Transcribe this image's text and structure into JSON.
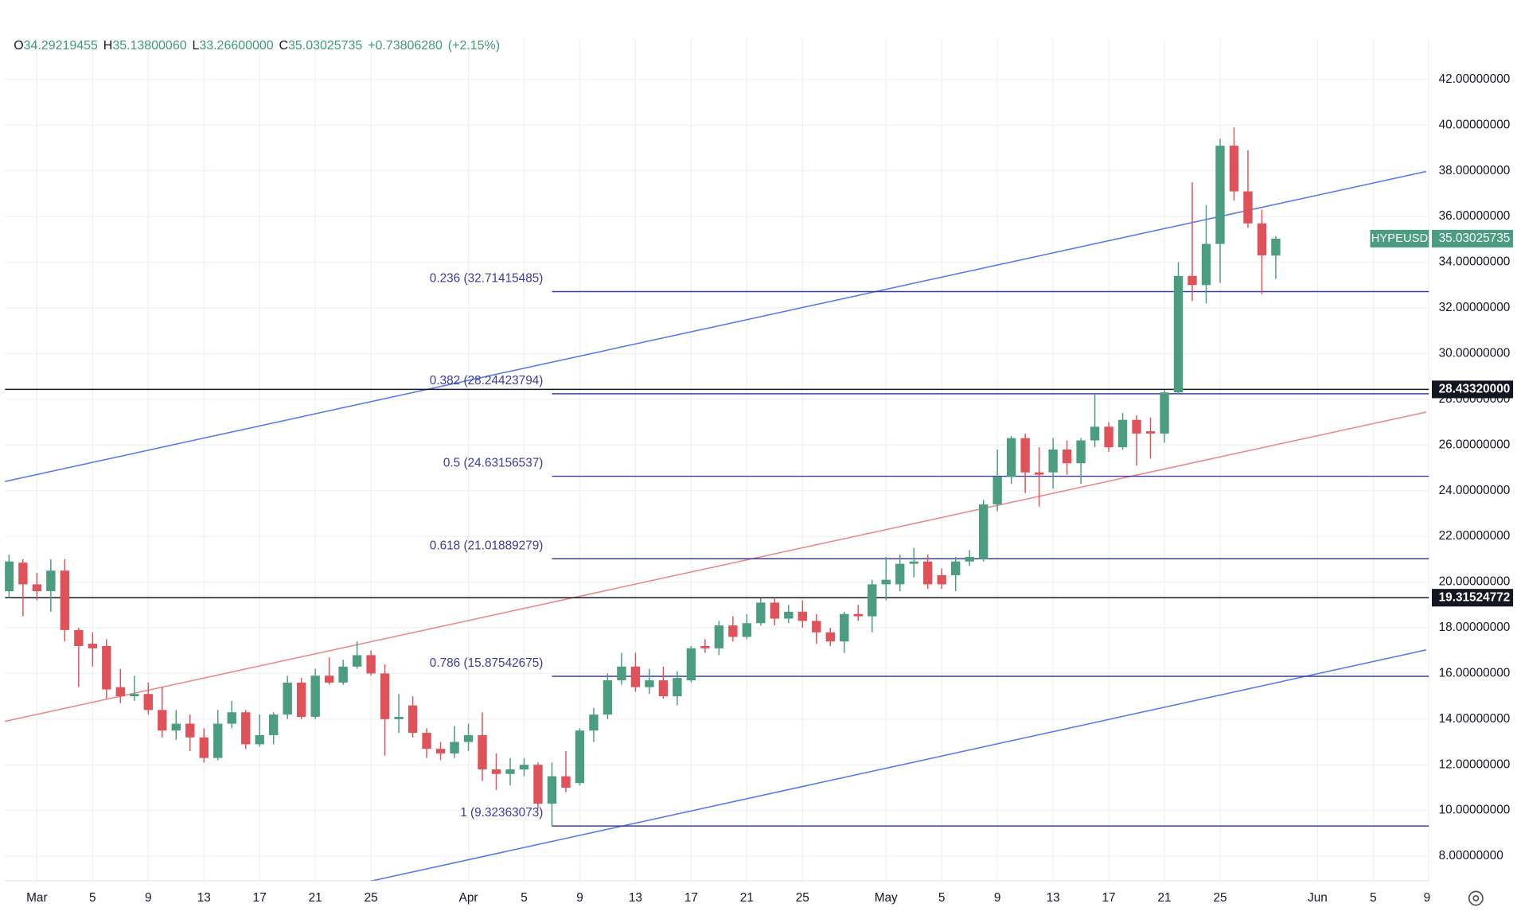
{
  "chart_data": {
    "type": "candlestick",
    "header": {
      "open_label": "O",
      "open": "34.29219455",
      "high_label": "H",
      "high": "35.13800060",
      "low_label": "L",
      "low": "33.26600000",
      "close_label": "C",
      "close": "35.03025735",
      "change": "+0.73806280",
      "change_pct": "(+2.15%)"
    },
    "symbol": "HYPEUSD",
    "up_color": "#4a9d7f",
    "down_color": "#e0525a",
    "open": [
      19.6,
      20.85,
      19.9,
      19.6,
      20.5,
      17.9,
      17.3,
      17.2,
      15.4,
      15.0,
      15.1,
      14.4,
      13.5,
      13.8,
      13.2,
      12.3,
      13.8,
      14.3,
      12.9,
      13.3,
      14.2,
      15.6,
      14.1,
      15.9,
      15.6,
      16.3,
      16.8,
      16.0,
      14.0,
      14.6,
      13.4,
      12.7,
      12.5,
      13.0,
      13.3,
      11.8,
      11.6,
      11.8,
      12.0,
      10.3,
      11.5,
      11.2,
      13.5,
      14.2,
      15.7,
      16.3,
      15.4,
      15.7,
      15.0,
      15.7,
      17.2,
      17.1,
      18.1,
      17.6,
      18.2,
      19.1,
      18.4,
      18.7,
      18.3,
      17.8,
      17.4,
      18.6,
      18.5,
      19.9,
      19.9,
      20.8,
      20.9,
      20.3,
      20.3,
      20.9,
      21.0,
      23.4,
      24.6,
      26.3,
      24.8,
      24.8,
      25.8,
      25.2,
      26.2,
      26.8,
      25.9,
      27.1,
      26.6,
      26.5,
      28.3,
      33.4,
      33.0,
      34.8,
      39.1,
      37.1,
      35.7,
      34.29219455
    ],
    "high": [
      21.2,
      21.0,
      20.4,
      21.0,
      21.0,
      18.0,
      17.8,
      17.5,
      16.2,
      15.9,
      15.6,
      15.4,
      14.4,
      14.2,
      13.6,
      14.4,
      14.8,
      14.4,
      14.2,
      14.3,
      15.9,
      15.8,
      16.2,
      16.7,
      16.6,
      17.4,
      17.0,
      16.4,
      15.1,
      15.0,
      13.6,
      13.0,
      13.7,
      13.8,
      14.3,
      12.5,
      12.3,
      12.3,
      12.1,
      12.1,
      12.6,
      13.6,
      14.5,
      16.0,
      16.9,
      16.9,
      16.2,
      16.3,
      16.1,
      17.2,
      17.5,
      18.3,
      18.5,
      18.6,
      19.3,
      19.3,
      19.0,
      19.2,
      18.6,
      18.0,
      18.7,
      19.0,
      20.1,
      21.1,
      21.2,
      21.5,
      21.2,
      20.6,
      21.1,
      21.4,
      23.6,
      25.8,
      26.4,
      26.5,
      25.9,
      26.3,
      26.2,
      26.3,
      28.2,
      27.0,
      27.4,
      27.3,
      27.2,
      28.4,
      34.0,
      37.5,
      36.5,
      39.4,
      39.9,
      38.9,
      36.3,
      35.138
    ],
    "low": [
      19.3,
      18.5,
      19.2,
      18.7,
      17.4,
      15.4,
      16.3,
      14.9,
      14.7,
      14.8,
      14.2,
      13.2,
      13.1,
      12.6,
      12.1,
      12.2,
      13.6,
      12.7,
      12.8,
      12.9,
      14.0,
      14.0,
      14.0,
      15.5,
      15.5,
      16.2,
      15.9,
      12.4,
      13.4,
      13.2,
      12.3,
      12.2,
      12.3,
      12.6,
      11.3,
      10.9,
      11.1,
      11.5,
      10.1,
      9.32,
      10.8,
      11.1,
      13.0,
      14.0,
      15.5,
      15.2,
      15.1,
      14.9,
      14.6,
      15.6,
      16.9,
      16.8,
      17.4,
      17.5,
      18.1,
      18.1,
      18.2,
      18.0,
      17.3,
      17.2,
      16.9,
      18.3,
      17.8,
      19.2,
      19.6,
      20.2,
      19.7,
      19.7,
      19.6,
      20.7,
      20.9,
      23.1,
      24.3,
      23.9,
      23.3,
      24.1,
      24.7,
      24.3,
      25.9,
      25.7,
      25.8,
      25.1,
      25.4,
      26.1,
      28.2,
      32.3,
      32.2,
      33.1,
      36.7,
      35.5,
      32.6,
      33.266
    ],
    "close": [
      20.9,
      19.9,
      19.6,
      20.5,
      17.9,
      17.2,
      17.1,
      15.3,
      15.0,
      15.1,
      14.4,
      13.5,
      13.8,
      13.2,
      12.3,
      13.8,
      14.3,
      12.9,
      13.3,
      14.2,
      15.6,
      14.1,
      15.9,
      15.6,
      16.3,
      16.8,
      16.0,
      14.0,
      14.1,
      13.4,
      12.7,
      12.5,
      13.0,
      13.3,
      11.8,
      11.6,
      11.8,
      12.0,
      10.3,
      11.5,
      11.0,
      13.5,
      14.2,
      15.7,
      16.3,
      15.4,
      15.7,
      15.0,
      15.8,
      17.1,
      17.1,
      18.1,
      17.6,
      18.2,
      19.1,
      18.4,
      18.7,
      18.3,
      17.8,
      17.4,
      18.6,
      18.5,
      19.9,
      20.1,
      20.8,
      20.9,
      19.9,
      19.9,
      20.9,
      21.1,
      23.4,
      24.6,
      26.3,
      24.8,
      24.7,
      25.8,
      25.2,
      26.2,
      26.8,
      25.9,
      27.1,
      26.5,
      26.5,
      28.3,
      33.4,
      33.0,
      34.8,
      39.1,
      37.1,
      35.7,
      34.3,
      35.03025735
    ],
    "xlim": [
      -0.3,
      102
    ],
    "xticks": [
      {
        "value": 2,
        "label": "Mar"
      },
      {
        "value": 6,
        "label": "5"
      },
      {
        "value": 10,
        "label": "9"
      },
      {
        "value": 14,
        "label": "13"
      },
      {
        "value": 18,
        "label": "17"
      },
      {
        "value": 22,
        "label": "21"
      },
      {
        "value": 26,
        "label": "25"
      },
      {
        "value": 33,
        "label": "Apr"
      },
      {
        "value": 37,
        "label": "5"
      },
      {
        "value": 41,
        "label": "9"
      },
      {
        "value": 45,
        "label": "13"
      },
      {
        "value": 49,
        "label": "17"
      },
      {
        "value": 53,
        "label": "21"
      },
      {
        "value": 57,
        "label": "25"
      },
      {
        "value": 63,
        "label": "May"
      },
      {
        "value": 67,
        "label": "5"
      },
      {
        "value": 71,
        "label": "9"
      },
      {
        "value": 75,
        "label": "13"
      },
      {
        "value": 79,
        "label": "17"
      },
      {
        "value": 83,
        "label": "21"
      },
      {
        "value": 87,
        "label": "25"
      },
      {
        "value": 94,
        "label": "Jun"
      },
      {
        "value": 98,
        "label": "5"
      },
      {
        "value": 102,
        "label": "9"
      }
    ],
    "ylim": [
      6.93,
      43.76
    ],
    "yticks": [
      {
        "value": 8,
        "label": "8.00000000"
      },
      {
        "value": 10,
        "label": "10.00000000"
      },
      {
        "value": 12,
        "label": "12.00000000"
      },
      {
        "value": 14,
        "label": "14.00000000"
      },
      {
        "value": 16,
        "label": "16.00000000"
      },
      {
        "value": 18,
        "label": "18.00000000"
      },
      {
        "value": 20,
        "label": "20.00000000"
      },
      {
        "value": 22,
        "label": "22.00000000"
      },
      {
        "value": 24,
        "label": "24.00000000"
      },
      {
        "value": 26,
        "label": "26.00000000"
      },
      {
        "value": 28,
        "label": "28.00000000"
      },
      {
        "value": 30,
        "label": "30.00000000"
      },
      {
        "value": 32,
        "label": "32.00000000"
      },
      {
        "value": 34,
        "label": "34.00000000"
      },
      {
        "value": 36,
        "label": "36.00000000"
      },
      {
        "value": 38,
        "label": "38.00000000"
      },
      {
        "value": 40,
        "label": "40.00000000"
      },
      {
        "value": 42,
        "label": "42.00000000"
      }
    ],
    "grid": true,
    "hlines": [
      {
        "value": 28.4332,
        "label": "28.43320000"
      },
      {
        "value": 19.31524772,
        "label": "19.31524772"
      }
    ],
    "fib": {
      "color": "#3b3b9e",
      "levels": [
        {
          "value": 32.71415485,
          "label": "0.236 (32.71415485)"
        },
        {
          "value": 28.24423794,
          "label": "0.382 (28.24423794)"
        },
        {
          "value": 24.63156537,
          "label": "0.5 (24.63156537)"
        },
        {
          "value": 21.01889279,
          "label": "0.618 (21.01889279)"
        },
        {
          "value": 15.87542675,
          "label": "0.786 (15.87542675)"
        },
        {
          "value": 9.32363073,
          "label": "1 (9.32363073)"
        }
      ]
    },
    "trendlines": [
      {
        "color": "#5b7be6",
        "x": [
          -0.32,
          101.8
        ],
        "values": [
          24.4,
          37.97
        ]
      },
      {
        "color": "#ea8a8a",
        "x": [
          -0.32,
          101.8
        ],
        "values": [
          13.9,
          27.44
        ]
      },
      {
        "color": "#5b7be6",
        "x": [
          25.16,
          101.8
        ],
        "values": [
          6.8,
          17.03
        ]
      }
    ]
  }
}
